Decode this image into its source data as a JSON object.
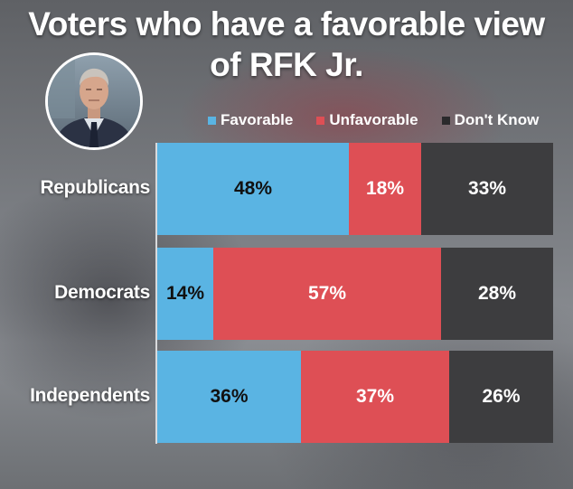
{
  "chart_data": {
    "type": "bar",
    "orientation": "horizontal",
    "stacked": true,
    "title": "Voters who have a favorable view of RFK Jr.",
    "title_lines": [
      "Voters who have a favorable view",
      "of RFK Jr."
    ],
    "categories": [
      "Republicans",
      "Democrats",
      "Independents"
    ],
    "series": [
      {
        "name": "Favorable",
        "key": "fav",
        "color": "#5ab4e3",
        "text_color": "#111111",
        "values": [
          48,
          14,
          36
        ]
      },
      {
        "name": "Unfavorable",
        "key": "unfav",
        "color": "#de4f55",
        "text_color": "#ffffff",
        "values": [
          18,
          57,
          37
        ]
      },
      {
        "name": "Don't Know",
        "key": "dk",
        "color": "#3d3d3f",
        "text_color": "#ffffff",
        "values": [
          33,
          28,
          26
        ]
      }
    ],
    "value_suffix": "%",
    "legend": "top",
    "grid": false
  },
  "photo": {
    "description_icon": "portrait-photo"
  }
}
